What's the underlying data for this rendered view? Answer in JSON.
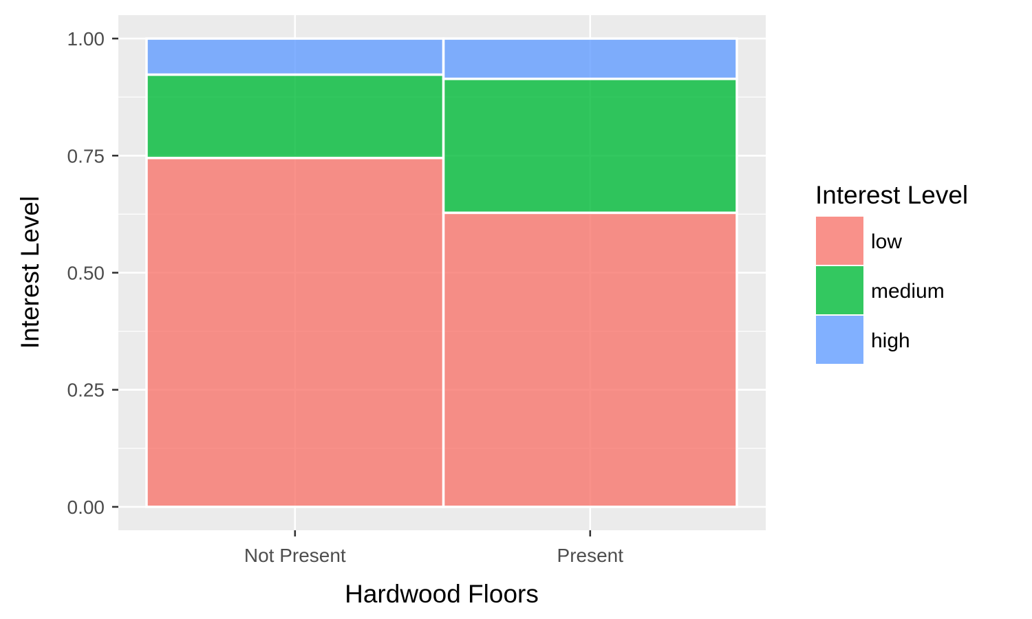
{
  "chart_data": {
    "type": "bar",
    "stacked": "proportional",
    "title": "",
    "xlabel": "Hardwood Floors",
    "ylabel": "Interest Level",
    "categories": [
      "Not Present",
      "Present"
    ],
    "category_widths": [
      0.503,
      0.497
    ],
    "series": [
      {
        "name": "low",
        "values": [
          0.745,
          0.628
        ],
        "color": "#F8766D"
      },
      {
        "name": "medium",
        "values": [
          0.178,
          0.286
        ],
        "color": "#00BA38"
      },
      {
        "name": "high",
        "values": [
          0.077,
          0.086
        ],
        "color": "#619CFF"
      }
    ],
    "ylim": [
      -0.05,
      1.05
    ],
    "yticks": [
      "0.00",
      "0.25",
      "0.50",
      "0.75",
      "1.00"
    ],
    "legend": {
      "title": "Interest Level",
      "position": "right"
    },
    "grid": true,
    "panel_background": "#EBEBEB",
    "bar_opacity": 0.8
  }
}
